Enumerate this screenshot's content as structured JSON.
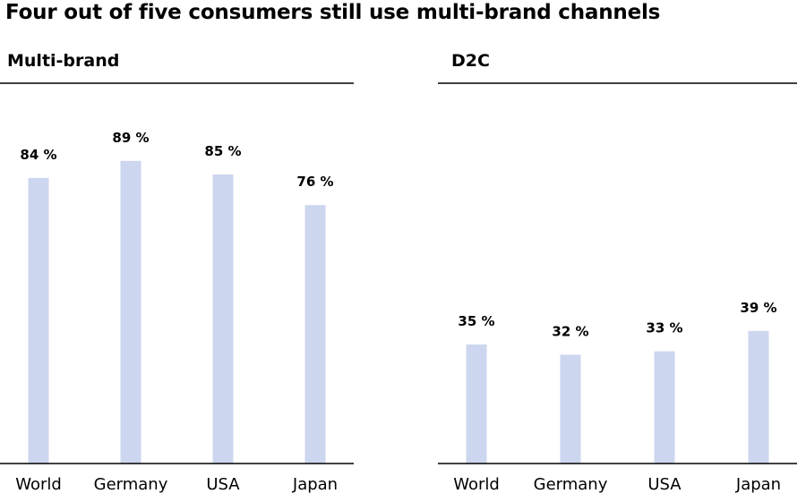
{
  "title": "Four out of five consumers still use multi-brand channels",
  "colors": {
    "bar": "#cdd6ef",
    "axis": "#000000"
  },
  "chart_data": [
    {
      "type": "bar",
      "title": "Multi-brand",
      "categories": [
        "World",
        "Germany",
        "USA",
        "Japan"
      ],
      "values": [
        84,
        89,
        85,
        76
      ],
      "value_labels": [
        "84 %",
        "89 %",
        "85 %",
        "76 %"
      ],
      "unit": "%",
      "ylim": [
        0,
        100
      ],
      "grid": false
    },
    {
      "type": "bar",
      "title": "D2C",
      "categories": [
        "World",
        "Germany",
        "USA",
        "Japan"
      ],
      "values": [
        35,
        32,
        33,
        39
      ],
      "value_labels": [
        "35 %",
        "32 %",
        "33 %",
        "39 %"
      ],
      "unit": "%",
      "ylim": [
        0,
        100
      ],
      "grid": false
    }
  ]
}
